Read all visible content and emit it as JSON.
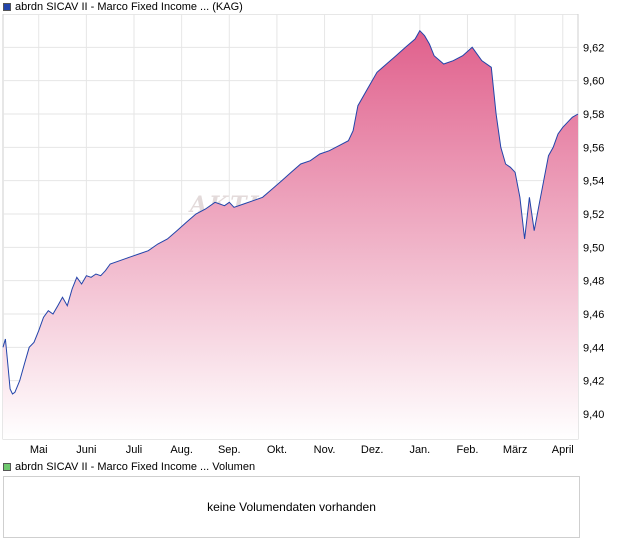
{
  "legend": {
    "price_label": "abrdn SICAV II - Marco Fixed Income ... (KAG)",
    "price_color": "#2244aa",
    "volume_label": "abrdn SICAV II - Marco Fixed Income ... Volumen",
    "volume_color": "#6ec86e"
  },
  "watermark": "AKTIEN",
  "volume_panel": {
    "message": "keine Volumendaten vorhanden"
  },
  "chart_data": {
    "type": "area",
    "y_ticks": [
      "9,40",
      "9,42",
      "9,44",
      "9,46",
      "9,48",
      "9,50",
      "9,52",
      "9,54",
      "9,56",
      "9,58",
      "9,60",
      "9,62"
    ],
    "ylim": [
      9.385,
      9.64
    ],
    "x_ticks": [
      "Mai",
      "Juni",
      "Juli",
      "Aug.",
      "Sep.",
      "Okt.",
      "Nov.",
      "Dez.",
      "Jan.",
      "Feb.",
      "März",
      "April"
    ],
    "x_tick_positions": [
      0.5,
      1.5,
      2.5,
      3.5,
      4.5,
      5.5,
      6.5,
      7.5,
      8.5,
      9.5,
      10.5,
      11.5
    ],
    "xlim": [
      -0.25,
      11.82
    ],
    "line_color": "#2244aa",
    "fill_color_top": "#e0608c",
    "fill_color_bottom": "#ffffff",
    "grid": true,
    "series": [
      {
        "x": [
          -0.25,
          -0.2,
          -0.15,
          -0.1,
          -0.05,
          0.0,
          0.1,
          0.2,
          0.3,
          0.4,
          0.5,
          0.6,
          0.7,
          0.8,
          0.9,
          1.0,
          1.1,
          1.2,
          1.3,
          1.4,
          1.5,
          1.6,
          1.7,
          1.8,
          1.9,
          2.0,
          2.2,
          2.4,
          2.6,
          2.8,
          3.0,
          3.2,
          3.4,
          3.6,
          3.8,
          4.0,
          4.2,
          4.4,
          4.5,
          4.6,
          4.8,
          5.0,
          5.2,
          5.4,
          5.6,
          5.8,
          6.0,
          6.2,
          6.4,
          6.6,
          6.8,
          7.0,
          7.1,
          7.2,
          7.4,
          7.6,
          7.8,
          8.0,
          8.2,
          8.4,
          8.5,
          8.6,
          8.7,
          8.8,
          9.0,
          9.2,
          9.4,
          9.6,
          9.8,
          10.0,
          10.1,
          10.2,
          10.3,
          10.4,
          10.5,
          10.6,
          10.7,
          10.8,
          10.9,
          11.0,
          11.1,
          11.2,
          11.3,
          11.4,
          11.5,
          11.6,
          11.7,
          11.82
        ],
        "y": [
          9.44,
          9.445,
          9.43,
          9.415,
          9.412,
          9.413,
          9.42,
          9.43,
          9.44,
          9.443,
          9.45,
          9.458,
          9.462,
          9.46,
          9.465,
          9.47,
          9.465,
          9.475,
          9.482,
          9.478,
          9.483,
          9.482,
          9.484,
          9.483,
          9.486,
          9.49,
          9.492,
          9.494,
          9.496,
          9.498,
          9.502,
          9.505,
          9.51,
          9.515,
          9.52,
          9.523,
          9.527,
          9.525,
          9.527,
          9.524,
          9.526,
          9.528,
          9.53,
          9.535,
          9.54,
          9.545,
          9.55,
          9.552,
          9.556,
          9.558,
          9.561,
          9.564,
          9.57,
          9.585,
          9.595,
          9.605,
          9.61,
          9.615,
          9.62,
          9.625,
          9.63,
          9.627,
          9.622,
          9.615,
          9.61,
          9.612,
          9.615,
          9.62,
          9.612,
          9.608,
          9.58,
          9.56,
          9.55,
          9.548,
          9.545,
          9.53,
          9.505,
          9.53,
          9.51,
          9.525,
          9.54,
          9.555,
          9.56,
          9.568,
          9.572,
          9.575,
          9.578,
          9.58
        ]
      }
    ]
  }
}
